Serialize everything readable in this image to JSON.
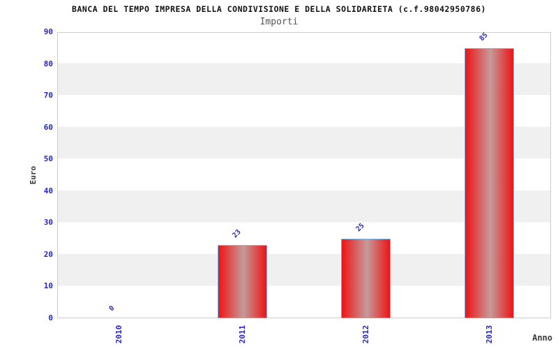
{
  "chart_data": {
    "type": "bar",
    "title": "BANCA DEL TEMPO IMPRESA DELLA CONDIVISIONE E DELLA SOLIDARIETA (c.f.98042950786)",
    "subtitle": "Importi",
    "xlabel": "Anno",
    "ylabel": "Euro",
    "categories": [
      "2010",
      "2011",
      "2012",
      "2013"
    ],
    "values": [
      0,
      23,
      25,
      85
    ],
    "ylim": [
      0,
      90
    ],
    "ytick_step": 10,
    "yticks": [
      0,
      10,
      20,
      30,
      40,
      50,
      60,
      70,
      80,
      90
    ],
    "legend": "none",
    "grid": "alternating horizontal bands",
    "value_labels_rotation_deg": -45,
    "xtick_rotation_deg": -90,
    "colors": {
      "bar_red": "#ee1414",
      "bar_center_highlight": "#c59a9a",
      "bar_border": "#7fb2e0",
      "tick_label_blue": "#2424cc",
      "value_label_blue": "#2c2cb8",
      "band_gray": "#f0f0f0",
      "band_white": "#ffffff",
      "plot_border": "#cccccc",
      "title_color": "#111111",
      "subtitle_color": "#555555",
      "axis_title_color": "#3a3a3a"
    }
  }
}
